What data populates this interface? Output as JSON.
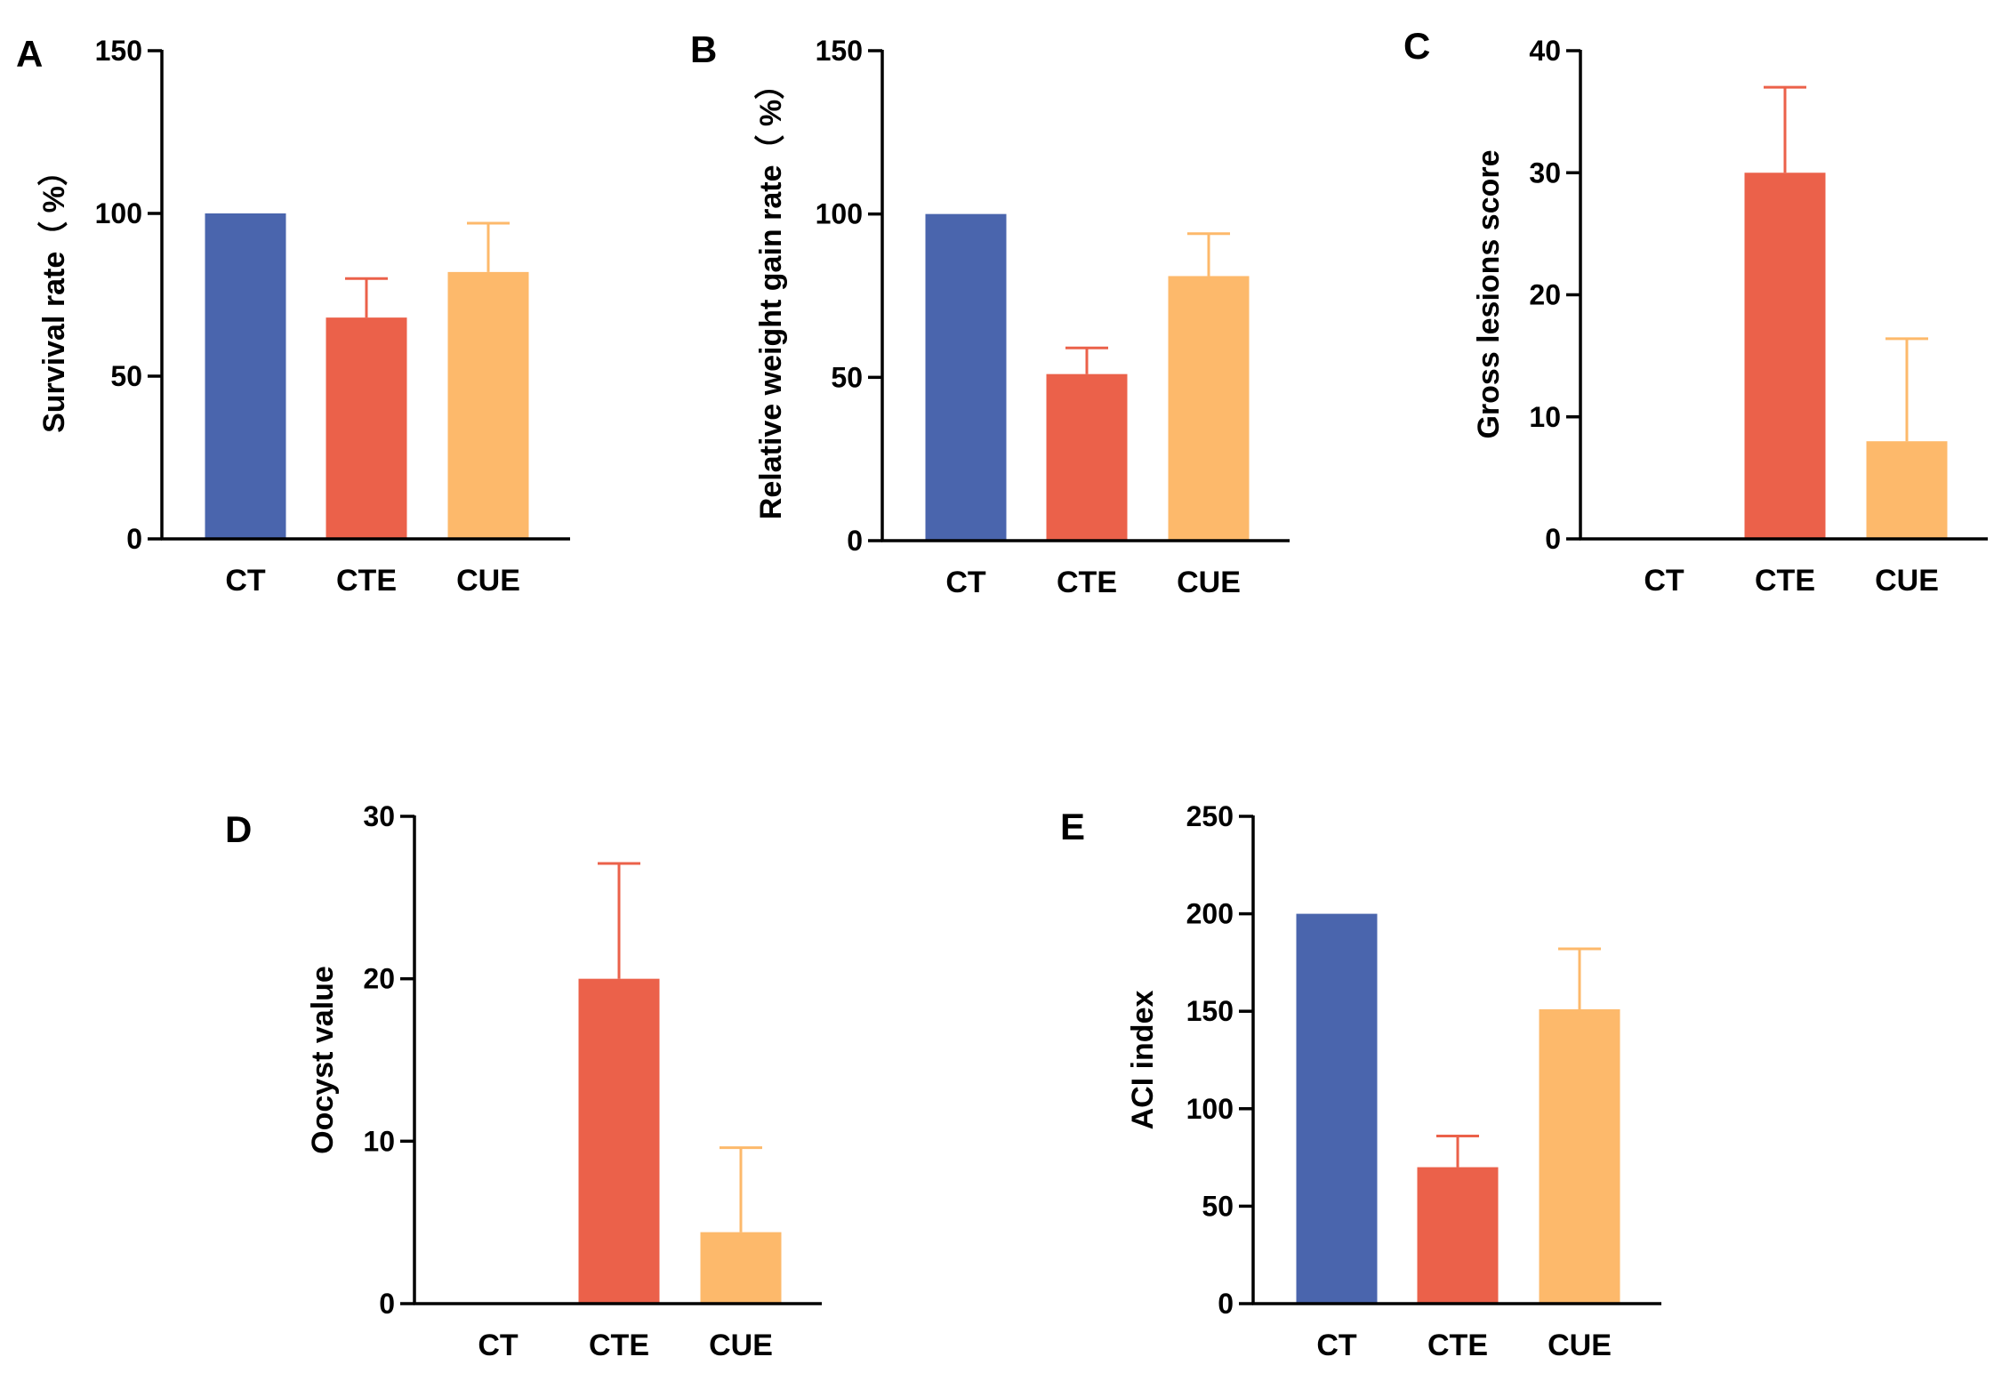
{
  "figure": {
    "colors": {
      "CT": "#4a65ad",
      "CTE": "#eb614a",
      "CUE": "#fdb96b"
    }
  },
  "chart_data": [
    {
      "panel": "A",
      "type": "bar",
      "categories": [
        "CT",
        "CTE",
        "CUE"
      ],
      "values": [
        100,
        68,
        82
      ],
      "errors": [
        0,
        12,
        15
      ],
      "ylabel": "Survival rate（ %）",
      "ylim": [
        0,
        150
      ],
      "yticks": [
        0,
        50,
        100,
        150
      ]
    },
    {
      "panel": "B",
      "type": "bar",
      "categories": [
        "CT",
        "CTE",
        "CUE"
      ],
      "values": [
        100,
        51,
        81
      ],
      "errors": [
        0,
        8,
        13
      ],
      "ylabel": "Relative weight gain rate（ %）",
      "ylim": [
        0,
        150
      ],
      "yticks": [
        0,
        50,
        100,
        150
      ]
    },
    {
      "panel": "C",
      "type": "bar",
      "categories": [
        "CT",
        "CTE",
        "CUE"
      ],
      "values": [
        0,
        30,
        8
      ],
      "errors": [
        0,
        7,
        8.4
      ],
      "ylabel": "Gross lesions score",
      "ylim": [
        0,
        40
      ],
      "yticks": [
        0,
        10,
        20,
        30,
        40
      ]
    },
    {
      "panel": "D",
      "type": "bar",
      "categories": [
        "CT",
        "CTE",
        "CUE"
      ],
      "values": [
        0,
        20,
        4.4
      ],
      "errors": [
        0,
        7.1,
        5.2
      ],
      "ylabel": "Oocyst value",
      "ylim": [
        0,
        30
      ],
      "yticks": [
        0,
        10,
        20,
        30
      ]
    },
    {
      "panel": "E",
      "type": "bar",
      "categories": [
        "CT",
        "CTE",
        "CUE"
      ],
      "values": [
        200,
        70,
        151
      ],
      "errors": [
        0,
        16,
        31
      ],
      "ylabel": "ACI index",
      "ylim": [
        0,
        250
      ],
      "yticks": [
        0,
        50,
        100,
        150,
        200,
        250
      ]
    }
  ]
}
